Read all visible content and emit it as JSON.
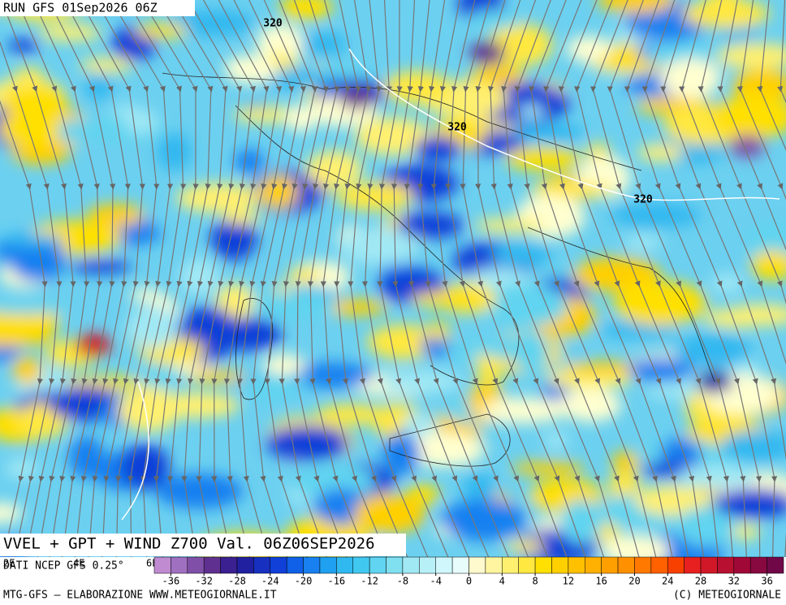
{
  "header": "RUN GFS 01Sep2026 06Z",
  "title": "VVEL + GPT + WIND Z700 Val. 06Z06SEP2026",
  "source": "DATI NCEP GFS 0.25°",
  "lon_labels": [
    "2E",
    "4E",
    "6E"
  ],
  "contour_labels": [
    "320",
    "320",
    "320"
  ],
  "footer": {
    "left": "MTG-GFS – ELABORAZIONE WWW.METEOGIORNALE.IT",
    "right": "(C) METEOGIORNALE"
  },
  "colorbar": {
    "range": [
      -38,
      38
    ],
    "ticks": [
      -36,
      -32,
      -28,
      -24,
      -20,
      -16,
      -12,
      -8,
      -4,
      0,
      4,
      8,
      12,
      16,
      20,
      24,
      28,
      32,
      36
    ],
    "colors": [
      "#c08bd0",
      "#a070c0",
      "#8050a8",
      "#603090",
      "#3a2090",
      "#2020a0",
      "#1830c0",
      "#1040d8",
      "#1060e8",
      "#1880f0",
      "#20a0f0",
      "#30b8f0",
      "#40c8f0",
      "#60d4f0",
      "#80e0f0",
      "#a0e8f4",
      "#b8f0f8",
      "#d0f8fc",
      "#e8fcfc",
      "#fffacd",
      "#fff5a0",
      "#fff070",
      "#ffe840",
      "#ffe000",
      "#ffd000",
      "#ffc000",
      "#ffb000",
      "#ffa000",
      "#ff9000",
      "#ff7800",
      "#ff6000",
      "#f84000",
      "#e82020",
      "#d01828",
      "#b81030",
      "#a00838",
      "#880840",
      "#700848"
    ]
  }
}
